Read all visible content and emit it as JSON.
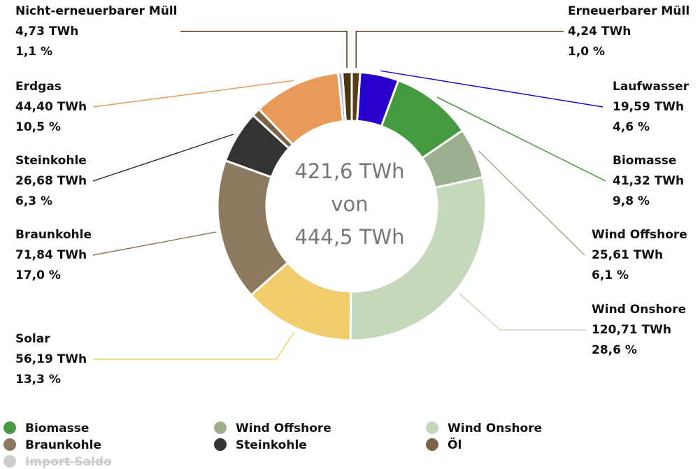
{
  "chart_data": {
    "type": "donut",
    "categories": [
      "Erneuerbarer Müll",
      "Laufwasser",
      "Biomasse",
      "Wind Offshore",
      "Wind Onshore",
      "Solar",
      "Braunkohle",
      "Steinkohle",
      null,
      "Erdgas",
      null,
      "Nicht-erneuerbarer Müll"
    ],
    "values": [
      4.24,
      19.59,
      41.32,
      25.61,
      120.71,
      56.19,
      71.84,
      26.68,
      4.2,
      44.4,
      2.1,
      4.73
    ],
    "value_labels": [
      "4,24 TWh",
      "19,59 TWh",
      "41,32 TWh",
      "25,61 TWh",
      "120,71 TWh",
      "56,19 TWh",
      "71,84 TWh",
      "26,68 TWh",
      null,
      "44,40 TWh",
      null,
      "4,73 TWh"
    ],
    "percents": [
      1.0,
      4.6,
      9.8,
      6.1,
      28.6,
      13.3,
      17.0,
      6.3,
      null,
      10.5,
      null,
      1.1
    ],
    "percent_labels": [
      "1,0 %",
      "4,6 %",
      "9,8 %",
      "6,1 %",
      "28,6 %",
      "13,3 %",
      "17,0 %",
      "6,3 %",
      null,
      "10,5 %",
      null,
      "1,1 %"
    ],
    "colors": [
      "#5a3f14",
      "#2a00cc",
      "#45993f",
      "#9caf8f",
      "#c5d8bb",
      "#f2cd6e",
      "#8b7a60",
      "#333333",
      "#7a6445",
      "#e89a58",
      "#b3a8d8",
      "#4a3510"
    ],
    "center_text": [
      "421,6 TWh",
      "von",
      "444,5 TWh"
    ],
    "legend": [
      {
        "name": "Biomasse",
        "color": "#45993f"
      },
      {
        "name": "Wind Offshore",
        "color": "#9caf8f"
      },
      {
        "name": "Wind Onshore",
        "color": "#c5d8bb"
      },
      {
        "name": "Braunkohle",
        "color": "#8b7a60"
      },
      {
        "name": "Steinkohle",
        "color": "#333333"
      },
      {
        "name": "Öl",
        "color": "#7a6445"
      },
      {
        "name": "Import Saldo",
        "color": "#cccccc",
        "hidden": true
      }
    ]
  }
}
